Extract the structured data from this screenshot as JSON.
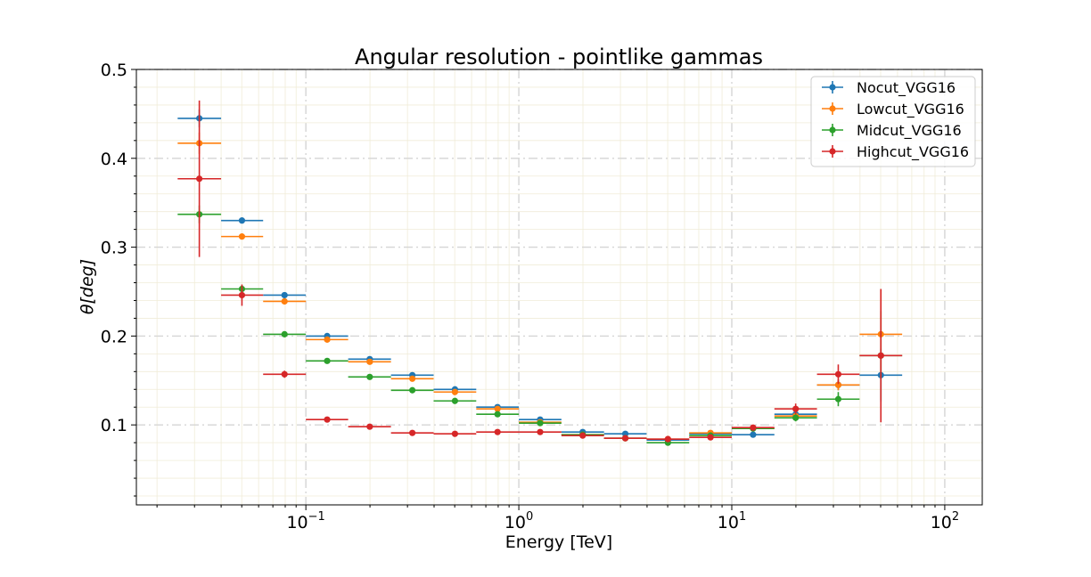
{
  "chart_data": {
    "type": "scatter",
    "title": "Angular resolution - pointlike gammas",
    "xlabel": "Energy [TeV]",
    "ylabel": "θ[deg]",
    "xscale": "log",
    "xlim": [
      0.016,
      150
    ],
    "ylim": [
      0.01,
      0.5
    ],
    "yticks": [
      "0.1",
      "0.2",
      "0.3",
      "0.4",
      "0.5"
    ],
    "xticks": [
      {
        "base": "10",
        "exp": "−1"
      },
      {
        "base": "10",
        "exp": "0"
      },
      {
        "base": "10",
        "exp": "1"
      },
      {
        "base": "10",
        "exp": "2"
      }
    ],
    "grid": true,
    "legend_position": "top-right",
    "x_bin_edges": [
      0.025,
      0.04,
      0.063,
      0.1,
      0.158,
      0.251,
      0.398,
      0.631,
      1.0,
      1.585,
      2.512,
      3.981,
      6.31,
      10.0,
      15.85,
      25.12,
      39.81,
      63.1
    ],
    "x_centers": [
      0.0316,
      0.0501,
      0.0794,
      0.1259,
      0.1995,
      0.3162,
      0.5012,
      0.7943,
      1.259,
      1.995,
      3.162,
      5.012,
      7.943,
      12.59,
      19.95,
      31.62,
      50.12
    ],
    "series": [
      {
        "name": "Nocut_VGG16",
        "color": "#1f77b4",
        "values": [
          0.445,
          0.33,
          0.246,
          0.2,
          0.174,
          0.156,
          0.14,
          0.12,
          0.106,
          0.092,
          0.09,
          0.083,
          0.09,
          0.089,
          0.112,
          0.145,
          0.156
        ],
        "yerr": [
          0.01,
          0.003,
          0.003,
          0.002,
          0.002,
          0.002,
          0.002,
          0.001,
          0.001,
          0.001,
          0.001,
          0.001,
          0.001,
          0.001,
          0.003,
          0.006,
          0.03
        ]
      },
      {
        "name": "Lowcut_VGG16",
        "color": "#ff7f0e",
        "values": [
          0.417,
          0.312,
          0.239,
          0.196,
          0.171,
          0.152,
          0.137,
          0.118,
          0.103,
          0.089,
          0.085,
          0.084,
          0.091,
          0.096,
          0.11,
          0.145,
          0.202
        ],
        "yerr": [
          0.012,
          0.003,
          0.003,
          0.002,
          0.002,
          0.002,
          0.002,
          0.001,
          0.001,
          0.001,
          0.001,
          0.001,
          0.001,
          0.002,
          0.003,
          0.006,
          0.05
        ]
      },
      {
        "name": "Midcut_VGG16",
        "color": "#2ca02c",
        "values": [
          0.337,
          0.253,
          0.202,
          0.172,
          0.154,
          0.139,
          0.127,
          0.112,
          0.102,
          0.089,
          0.085,
          0.08,
          0.088,
          0.096,
          0.108,
          0.129,
          0.178
        ],
        "yerr": [
          0.01,
          0.004,
          0.003,
          0.002,
          0.002,
          0.002,
          0.002,
          0.001,
          0.001,
          0.001,
          0.001,
          0.001,
          0.001,
          0.002,
          0.004,
          0.008,
          0.05
        ]
      },
      {
        "name": "Highcut_VGG16",
        "color": "#d62728",
        "values": [
          0.377,
          0.246,
          0.157,
          0.106,
          0.098,
          0.091,
          0.09,
          0.092,
          0.092,
          0.088,
          0.085,
          0.084,
          0.086,
          0.097,
          0.118,
          0.157,
          0.178
        ],
        "yerr": [
          0.088,
          0.012,
          0.004,
          0.002,
          0.002,
          0.001,
          0.001,
          0.001,
          0.001,
          0.001,
          0.001,
          0.001,
          0.001,
          0.003,
          0.006,
          0.011,
          0.075
        ]
      }
    ]
  }
}
